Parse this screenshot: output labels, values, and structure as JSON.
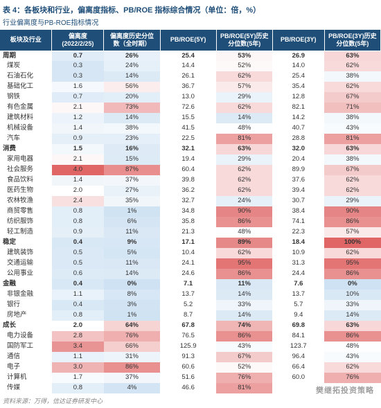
{
  "title": "表 4：各板块和行业，偏离度指标、PB/ROE 指标综合情况（单位：倍，%）",
  "subtitle": "行业偏离度与PB-ROE指标情况",
  "source": "资料来源：万得，信达证券研发中心",
  "watermark": "樊继拓投资策略",
  "scale": {
    "dev": {
      "min": 0,
      "max": 4.0,
      "lowColor": "#cfe2f3",
      "midColor": "#ffffff",
      "highColor": "#e06666"
    },
    "hist": {
      "min": 0,
      "max": 100,
      "lowColor": "#cfe2f3",
      "midColor": "#ffffff",
      "highColor": "#e06666"
    },
    "plain": "#ffffff"
  },
  "columns": [
    {
      "key": "label",
      "title": "板块及行业",
      "scale": "none"
    },
    {
      "key": "dev",
      "title": "偏离度\n(2022/2/25)",
      "scale": "dev",
      "fmt": "num1"
    },
    {
      "key": "devHist",
      "title": "偏离度历史分位\n数（全时期）",
      "scale": "hist",
      "fmt": "pct"
    },
    {
      "key": "pb5",
      "title": "PB/ROE(5Y)",
      "scale": "plain",
      "fmt": "num1"
    },
    {
      "key": "pb5Hist",
      "title": "PB/ROE(5Y)历史\n分位数(5年)",
      "scale": "hist",
      "fmt": "pct"
    },
    {
      "key": "pb3",
      "title": "PB/ROE(3Y)",
      "scale": "plain",
      "fmt": "num1"
    },
    {
      "key": "pb3Hist",
      "title": "PB/ROE(3Y)历史\n分位数(5年)",
      "scale": "hist",
      "fmt": "pct"
    }
  ],
  "rows": [
    {
      "section": true,
      "label": "周期",
      "dev": 0.7,
      "devHist": 26,
      "pb5": 25.4,
      "pb5Hist": 53,
      "pb3": 26.9,
      "pb3Hist": 63
    },
    {
      "label": "煤炭",
      "dev": 0.3,
      "devHist": 24,
      "pb5": 14.4,
      "pb5Hist": 52,
      "pb3": 14.0,
      "pb3Hist": 62
    },
    {
      "label": "石油石化",
      "dev": 0.3,
      "devHist": 14,
      "pb5": 26.1,
      "pb5Hist": 62,
      "pb3": 25.4,
      "pb3Hist": 38
    },
    {
      "label": "基础化工",
      "dev": 1.6,
      "devHist": 56,
      "pb5": 36.7,
      "pb5Hist": 57,
      "pb3": 35.4,
      "pb3Hist": 62
    },
    {
      "label": "钢铁",
      "dev": 0.7,
      "devHist": 20,
      "pb5": 13.0,
      "pb5Hist": 29,
      "pb3": 12.8,
      "pb3Hist": 67
    },
    {
      "label": "有色金属",
      "dev": 2.1,
      "devHist": 73,
      "pb5": 72.6,
      "pb5Hist": 62,
      "pb3": 82.1,
      "pb3Hist": 71
    },
    {
      "label": "建筑材料",
      "dev": 1.2,
      "devHist": 14,
      "pb5": 15.5,
      "pb5Hist": 14,
      "pb3": 14.2,
      "pb3Hist": 38
    },
    {
      "label": "机械设备",
      "dev": 1.4,
      "devHist": 38,
      "pb5": 41.5,
      "pb5Hist": 48,
      "pb3": 40.7,
      "pb3Hist": 43
    },
    {
      "label": "汽车",
      "dev": 0.9,
      "devHist": 23,
      "pb5": 22.5,
      "pb5Hist": 81,
      "pb3": 28.8,
      "pb3Hist": 81
    },
    {
      "section": true,
      "label": "消费",
      "dev": 1.5,
      "devHist": 16,
      "pb5": 32.1,
      "pb5Hist": 63,
      "pb3": 32.0,
      "pb3Hist": 63
    },
    {
      "label": "家用电器",
      "dev": 2.1,
      "devHist": 15,
      "pb5": 19.4,
      "pb5Hist": 29,
      "pb3": 20.4,
      "pb3Hist": 38
    },
    {
      "label": "社会服务",
      "dev": 4.0,
      "devHist": 87,
      "pb5": 60.4,
      "pb5Hist": 62,
      "pb3": 89.9,
      "pb3Hist": 67
    },
    {
      "label": "食品饮料",
      "dev": 1.4,
      "devHist": 37,
      "pb5": 39.8,
      "pb5Hist": 62,
      "pb3": 37.6,
      "pb3Hist": 62
    },
    {
      "label": "医药生物",
      "dev": 2.0,
      "devHist": 27,
      "pb5": 36.2,
      "pb5Hist": 62,
      "pb3": 39.4,
      "pb3Hist": 62
    },
    {
      "label": "农林牧渔",
      "dev": 2.4,
      "devHist": 35,
      "pb5": 32.7,
      "pb5Hist": 24,
      "pb3": 30.7,
      "pb3Hist": 29
    },
    {
      "label": "商贸零售",
      "dev": 0.8,
      "devHist": 1,
      "pb5": 34.8,
      "pb5Hist": 90,
      "pb3": 38.4,
      "pb3Hist": 90
    },
    {
      "label": "纺织服饰",
      "dev": 0.8,
      "devHist": 6,
      "pb5": 35.8,
      "pb5Hist": 86,
      "pb3": 74.1,
      "pb3Hist": 86
    },
    {
      "label": "轻工制造",
      "dev": 0.9,
      "devHist": 11,
      "pb5": 21.3,
      "pb5Hist": 48,
      "pb3": 22.3,
      "pb3Hist": 57
    },
    {
      "section": true,
      "label": "稳定",
      "dev": 0.4,
      "devHist": 9,
      "pb5": 17.1,
      "pb5Hist": 89,
      "pb3": 18.4,
      "pb3Hist": 100
    },
    {
      "label": "建筑装饰",
      "dev": 0.5,
      "devHist": 5,
      "pb5": 10.4,
      "pb5Hist": 62,
      "pb3": 10.9,
      "pb3Hist": 62
    },
    {
      "label": "交通运输",
      "dev": 0.5,
      "devHist": 11,
      "pb5": 24.1,
      "pb5Hist": 95,
      "pb3": 31.3,
      "pb3Hist": 95
    },
    {
      "label": "公用事业",
      "dev": 0.6,
      "devHist": 14,
      "pb5": 24.6,
      "pb5Hist": 86,
      "pb3": 24.4,
      "pb3Hist": 86
    },
    {
      "section": true,
      "label": "金融",
      "dev": 0.4,
      "devHist": 0,
      "pb5": 7.1,
      "pb5Hist": 11,
      "pb3": 7.6,
      "pb3Hist": 0
    },
    {
      "label": "非银金融",
      "dev": 1.1,
      "devHist": 8,
      "pb5": 13.7,
      "pb5Hist": 14,
      "pb3": 13.7,
      "pb3Hist": 10
    },
    {
      "label": "银行",
      "dev": 0.4,
      "devHist": 3,
      "pb5": 5.2,
      "pb5Hist": 33,
      "pb3": 5.7,
      "pb3Hist": 33
    },
    {
      "label": "房地产",
      "dev": 0.8,
      "devHist": 1,
      "pb5": 8.7,
      "pb5Hist": 14,
      "pb3": 9.4,
      "pb3Hist": 14
    },
    {
      "section": true,
      "label": "成长",
      "dev": 2.0,
      "devHist": 64,
      "pb5": 67.8,
      "pb5Hist": 74,
      "pb3": 69.8,
      "pb3Hist": 63
    },
    {
      "label": "电力设备",
      "dev": 2.8,
      "devHist": 76,
      "pb5": 76.5,
      "pb5Hist": 86,
      "pb3": 84.1,
      "pb3Hist": 86
    },
    {
      "label": "国防军工",
      "dev": 3.4,
      "devHist": 66,
      "pb5": 125.9,
      "pb5Hist": 43,
      "pb3": 123.7,
      "pb3Hist": 48
    },
    {
      "label": "通信",
      "dev": 1.1,
      "devHist": 31,
      "pb5": 91.3,
      "pb5Hist": 67,
      "pb3": 96.4,
      "pb3Hist": 43
    },
    {
      "label": "电子",
      "dev": 3.0,
      "devHist": 86,
      "pb5": 60.6,
      "pb5Hist": 52,
      "pb3": 66.4,
      "pb3Hist": 62
    },
    {
      "label": "计算机",
      "dev": 1.7,
      "devHist": 37,
      "pb5": 51.6,
      "pb5Hist": 76,
      "pb3": 60.0,
      "pb3Hist": 76
    },
    {
      "label": "传媒",
      "dev": 0.8,
      "devHist": 4,
      "pb5": 46.6,
      "pb5Hist": 81,
      "pb3": null,
      "pb3Hist": null
    }
  ]
}
